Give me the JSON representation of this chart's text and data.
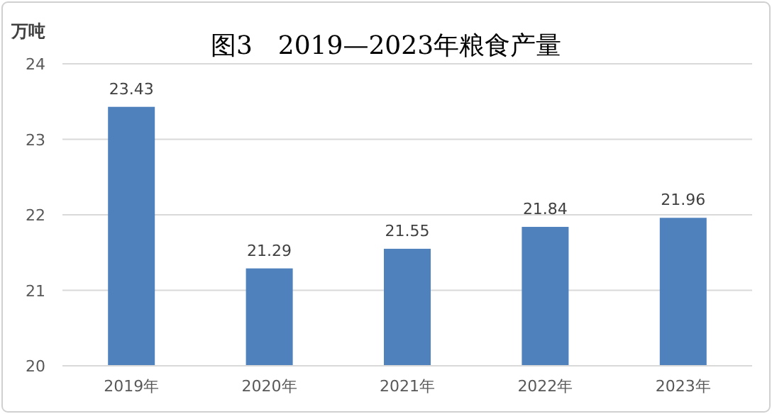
{
  "chart_data": {
    "type": "bar",
    "title": "图3　2019—2023年粮食产量",
    "ylabel": "万吨",
    "categories": [
      "2019年",
      "2020年",
      "2021年",
      "2022年",
      "2023年"
    ],
    "values": [
      23.43,
      21.29,
      21.55,
      21.84,
      21.96
    ],
    "color": "#4f81bd",
    "ylim": [
      20,
      24
    ],
    "yticks": [
      20,
      21,
      22,
      23,
      24
    ],
    "grid": "y",
    "data_labels": true
  }
}
